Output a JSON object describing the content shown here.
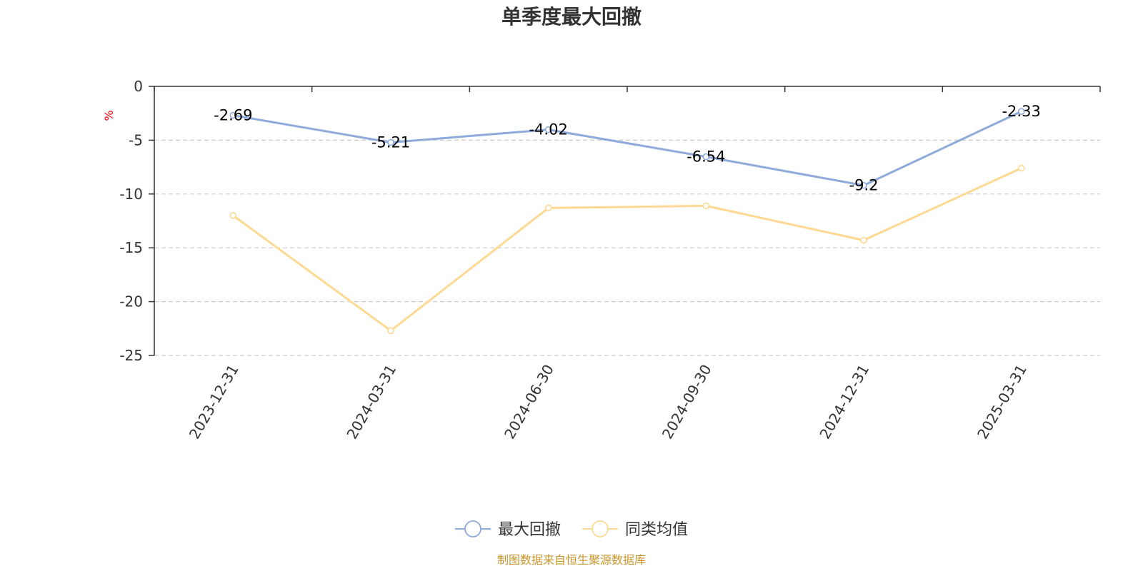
{
  "chart_data": {
    "type": "line",
    "title": "单季度最大回撤",
    "ylabel": "%",
    "categories": [
      "2023-12-31",
      "2024-03-31",
      "2024-06-30",
      "2024-09-30",
      "2024-12-31",
      "2025-03-31"
    ],
    "ylim": [
      -25,
      0
    ],
    "yticks": [
      0,
      -5,
      -10,
      -15,
      -20,
      -25
    ],
    "grid": true,
    "legend_position": "bottom-center",
    "series": [
      {
        "name": "最大回撤",
        "color": "#8eaadb",
        "values": [
          -2.69,
          -5.21,
          -4.02,
          -6.54,
          -9.2,
          -2.33
        ],
        "labels": [
          "-2.69",
          "-5.21",
          "-4.02",
          "-6.54",
          "-9.2",
          "-2.33"
        ]
      },
      {
        "name": "同类均值",
        "color": "#fdd994",
        "values": [
          -12.0,
          -22.7,
          -11.3,
          -11.1,
          -14.3,
          -7.6
        ]
      }
    ]
  },
  "source_note": "制图数据来自恒生聚源数据库"
}
